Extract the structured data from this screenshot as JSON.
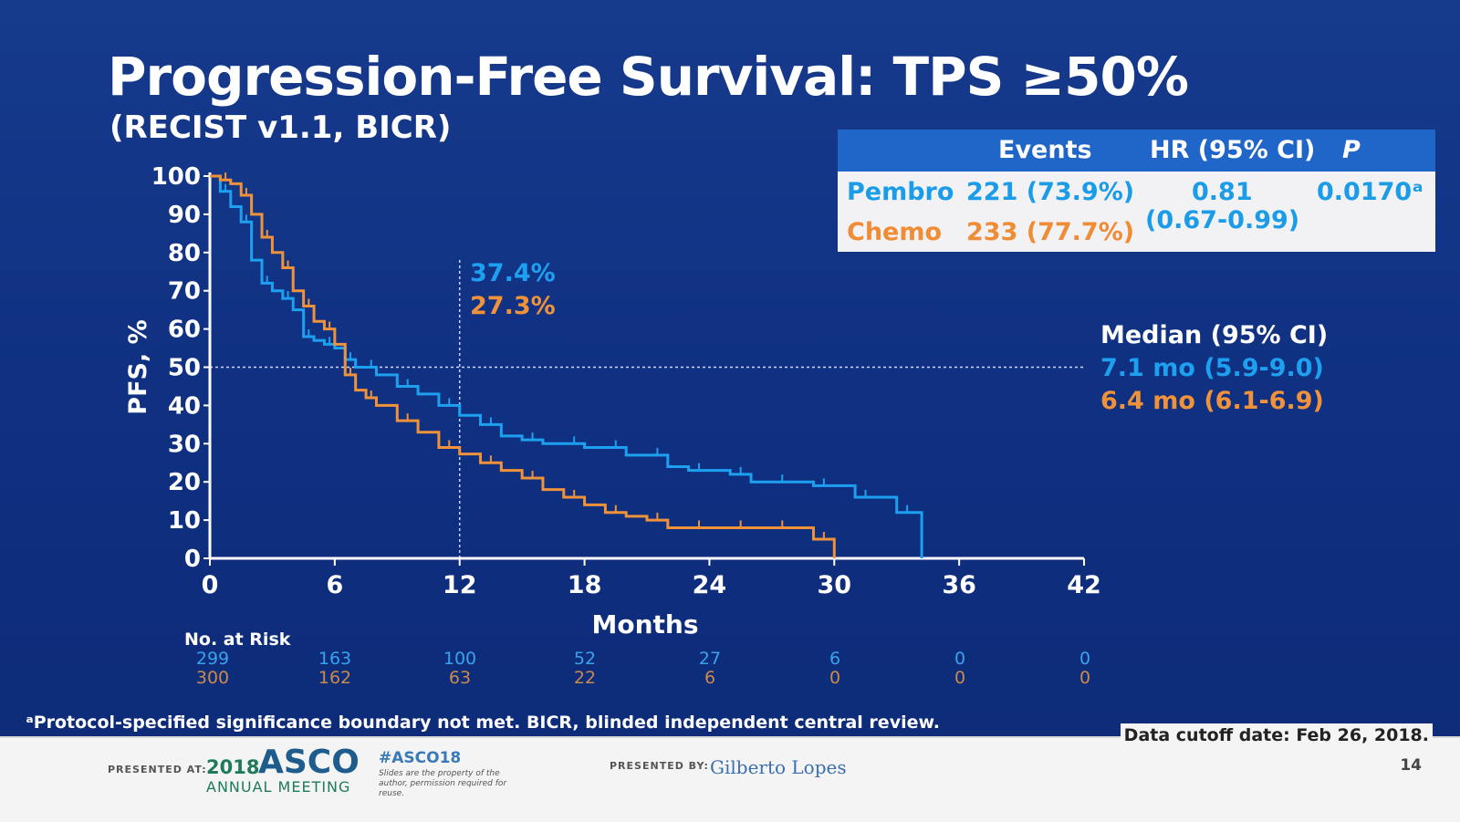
{
  "slide": {
    "title": "Progression-Free Survival: TPS ≥50%",
    "subtitle": "(RECIST v1.1, BICR)",
    "footnote": "ᵃProtocol-specified significance boundary not met. BICR, blinded independent central review."
  },
  "stats_table": {
    "headers": {
      "events": "Events",
      "hr": "HR (95% CI)",
      "p": "P"
    },
    "pembro": {
      "label": "Pembro",
      "events": "221 (73.9%)"
    },
    "chemo": {
      "label": "Chemo",
      "events": "233 (77.7%)"
    },
    "hr_value": "0.81",
    "hr_ci": "(0.67-0.99)",
    "p_value": "0.0170ᵃ"
  },
  "annotations": {
    "pembro_12mo": "37.4%",
    "chemo_12mo": "27.3%",
    "median_title": "Median (95% CI)",
    "pembro_median": "7.1 mo (5.9-9.0)",
    "chemo_median": "6.4 mo (6.1-6.9)"
  },
  "risk_table": {
    "title": "No. at Risk",
    "pembro": [
      "299",
      "163",
      "100",
      "52",
      "27",
      "6",
      "0",
      "0"
    ],
    "chemo": [
      "300",
      "162",
      "63",
      "22",
      "6",
      "0",
      "0",
      "0"
    ]
  },
  "footer": {
    "presented_at": "PRESENTED AT:",
    "asco_year": "2018",
    "asco_word": "ASCO",
    "asco_meeting": "ANNUAL MEETING",
    "hashtag": "#ASCO18",
    "legal": "Slides are the property of the author, permission required for reuse.",
    "presented_by": "PRESENTED BY:",
    "presenter": "Gilberto Lopes",
    "cutoff": "Data cutoff date: Feb 26, 2018.",
    "page": "14"
  },
  "colors": {
    "background": "#1440a0",
    "pembro": "#1ea0f0",
    "chemo": "#f0923a",
    "axis": "#ffffff"
  },
  "chart_data": {
    "type": "line",
    "step": true,
    "xlabel": "Months",
    "ylabel": "PFS, %",
    "xlim": [
      0,
      42
    ],
    "ylim": [
      0,
      100
    ],
    "xticks": [
      0,
      6,
      12,
      18,
      24,
      30,
      36,
      42
    ],
    "yticks": [
      0,
      10,
      20,
      30,
      40,
      50,
      60,
      70,
      80,
      90,
      100
    ],
    "reference_lines": {
      "y": 50,
      "x": 12
    },
    "series": [
      {
        "name": "Pembro",
        "color": "#1ea0f0",
        "x": [
          0,
          0.5,
          1,
          1.5,
          2,
          2.5,
          3,
          3.5,
          4,
          4.5,
          5,
          5.5,
          6,
          6.5,
          7,
          7.5,
          8,
          9,
          10,
          11,
          12,
          13,
          14,
          15,
          16,
          17,
          18,
          19,
          20,
          21,
          22,
          23,
          24,
          25,
          26,
          27,
          28,
          29,
          30,
          31,
          32,
          33,
          34,
          34.2
        ],
        "y": [
          100,
          96,
          92,
          88,
          78,
          72,
          70,
          68,
          65,
          58,
          57,
          56,
          55,
          52,
          50,
          50,
          48,
          45,
          43,
          40,
          37.4,
          35,
          32,
          31,
          30,
          30,
          29,
          29,
          27,
          27,
          24,
          23,
          23,
          22,
          20,
          20,
          20,
          19,
          19,
          16,
          16,
          12,
          12,
          0
        ]
      },
      {
        "name": "Chemo",
        "color": "#f0923a",
        "x": [
          0,
          0.5,
          1,
          1.5,
          2,
          2.5,
          3,
          3.5,
          4,
          4.5,
          5,
          5.5,
          6,
          6.5,
          7,
          7.5,
          8,
          9,
          10,
          11,
          12,
          13,
          14,
          15,
          16,
          17,
          18,
          19,
          20,
          21,
          22,
          23,
          24,
          25,
          26,
          27,
          28,
          29,
          30
        ],
        "y": [
          100,
          99,
          98,
          95,
          90,
          84,
          80,
          76,
          70,
          66,
          62,
          60,
          56,
          48,
          44,
          42,
          40,
          36,
          33,
          29,
          27.3,
          25,
          23,
          21,
          18,
          16,
          14,
          12,
          11,
          10,
          8,
          8,
          8,
          8,
          8,
          8,
          8,
          5,
          0
        ]
      }
    ],
    "pembro_12mo": 37.4,
    "chemo_12mo": 27.3
  }
}
